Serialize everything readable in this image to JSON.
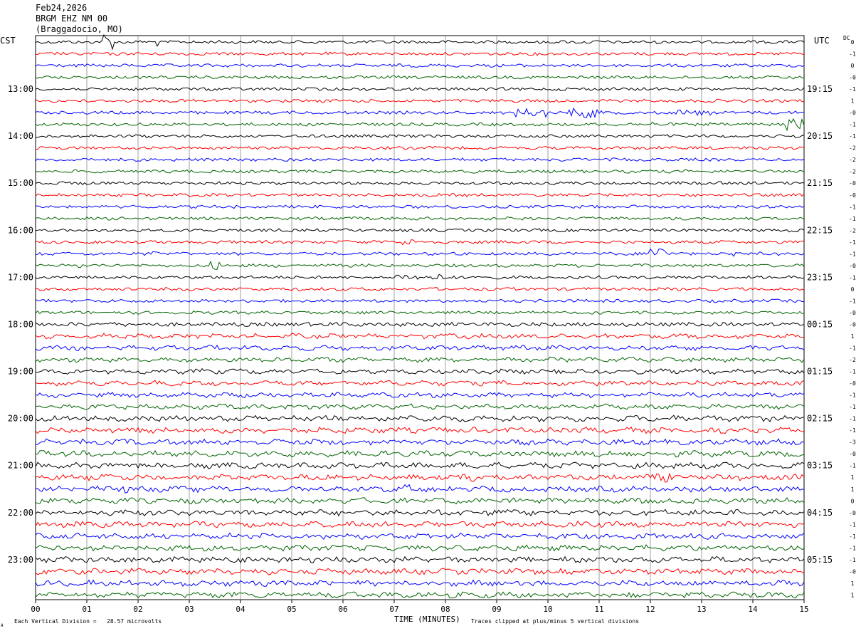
{
  "header": {
    "date": "Feb24,2026",
    "station": "BRGM EHZ NM 00",
    "location": "(Braggadocio, MO)"
  },
  "left_axis_title": "CST",
  "right_axis_title": "UTC",
  "dc_title": "DC",
  "footer": {
    "xlabel": "TIME (MINUTES)",
    "scale_note": "Each Vertical Division =   28.57 microvolts",
    "clip_note": "Traces clipped at plus/minus 5 vertical divisions",
    "corner_mark": "A"
  },
  "chart_data": {
    "type": "line",
    "xlabel": "TIME (MINUTES)",
    "xlim": [
      0,
      15
    ],
    "x_ticks": [
      "00",
      "01",
      "02",
      "03",
      "04",
      "05",
      "06",
      "07",
      "08",
      "09",
      "10",
      "11",
      "12",
      "13",
      "14",
      "15"
    ],
    "trace_colors": [
      "#000000",
      "#ff0000",
      "#0000ff",
      "#006400"
    ],
    "traces_per_hour": 4,
    "trace_count": 48,
    "cst_hour_labels": [
      "13:00",
      "14:00",
      "15:00",
      "16:00",
      "17:00",
      "18:00",
      "19:00",
      "20:00",
      "21:00",
      "22:00",
      "23:00"
    ],
    "utc_hour_labels": [
      "19:15",
      "20:15",
      "21:15",
      "22:15",
      "23:15",
      "00:15",
      "01:15",
      "02:15",
      "03:15",
      "04:15",
      "05:15"
    ],
    "dc_offsets": [
      "0",
      "-1",
      "0",
      "-0",
      "-1",
      "1",
      "-0",
      "-1",
      "-1",
      "-2",
      "-2",
      "-2",
      "-0",
      "-0",
      "-1",
      "-1",
      "-2",
      "-1",
      "-1",
      "-0",
      "-1",
      "0",
      "-1",
      "-0",
      "-0",
      "1",
      "-1",
      "-2",
      "-1",
      "-0",
      "-1",
      "-1",
      "-1",
      "-1",
      "-3",
      "-0",
      "-1",
      "1",
      "1",
      "0",
      "-0",
      "-1",
      "-1",
      "-1",
      "-1",
      "-0",
      "1",
      "1"
    ]
  }
}
